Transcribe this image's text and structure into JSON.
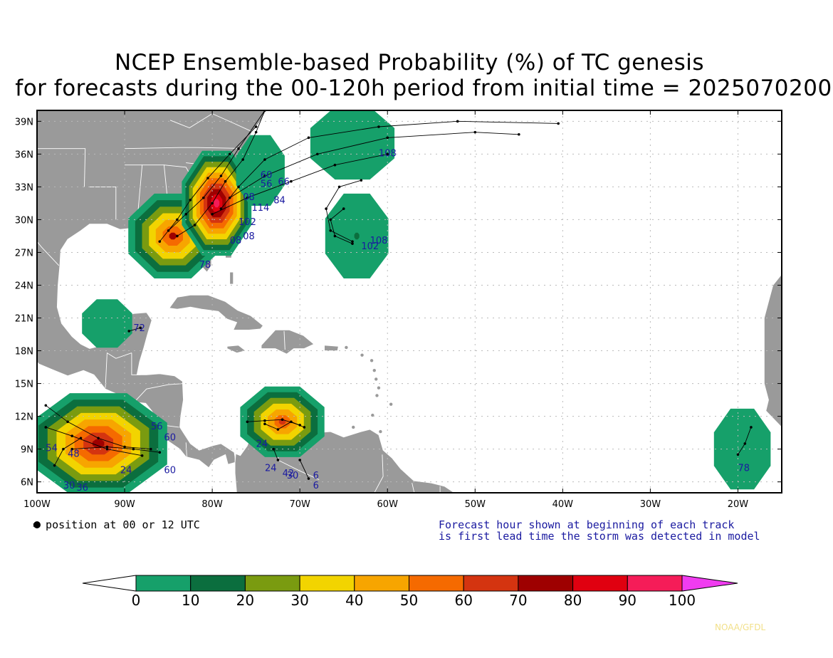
{
  "title": {
    "line1": "NCEP Ensemble-based Probability (%) of TC genesis",
    "line2": "for forecasts during the 00-120h period from initial time = 2025070200"
  },
  "axes": {
    "lat_labels": [
      "39N",
      "36N",
      "33N",
      "30N",
      "27N",
      "24N",
      "21N",
      "18N",
      "15N",
      "12N",
      "9N",
      "6N"
    ],
    "lon_labels": [
      "100W",
      "90W",
      "80W",
      "70W",
      "60W",
      "50W",
      "40W",
      "30W",
      "20W"
    ],
    "lat_range": [
      5,
      40
    ],
    "lon_range": [
      -100,
      -15
    ]
  },
  "legend": {
    "dot_text": "= position at 00 or 12 UTC",
    "note_line1": "Forecast hour shown at beginning of each track",
    "note_line2": "is first lead time the storm was detected in model"
  },
  "colorbar": {
    "labels": [
      "0",
      "10",
      "20",
      "30",
      "40",
      "50",
      "60",
      "70",
      "80",
      "90",
      "100"
    ],
    "colors": [
      "#ffffff",
      "#16a06a",
      "#0b6e3e",
      "#7a9b10",
      "#f2d400",
      "#f7a500",
      "#f56a00",
      "#d43410",
      "#9e0000",
      "#e00010",
      "#f51c58",
      "#f03cf0"
    ]
  },
  "credit": "NOAA/GFDL",
  "map_colors": {
    "land": "#9a9a9a",
    "ocean": "#ffffff",
    "track": "#000000",
    "hour_label": "#1a1aa0"
  },
  "prob_regions": [
    {
      "name": "gulf",
      "lat": 28.5,
      "lon": -84.5,
      "levels": [
        10,
        20,
        30,
        40,
        50,
        60,
        70,
        80
      ]
    },
    {
      "name": "southeast",
      "lat": 31.5,
      "lon": -79.5,
      "levels": [
        10,
        20,
        30,
        40,
        50,
        60,
        70,
        80,
        90,
        100
      ]
    },
    {
      "name": "carolina-offshore",
      "lat": 34.5,
      "lon": -74.5,
      "levels": [
        10
      ]
    },
    {
      "name": "north-atlantic",
      "lat": 37,
      "lon": -64,
      "levels": [
        10
      ]
    },
    {
      "name": "bermuda-south",
      "lat": 28.5,
      "lon": -63.5,
      "levels": [
        10,
        20
      ]
    },
    {
      "name": "yucatan",
      "lat": 20.5,
      "lon": -92,
      "levels": [
        10
      ]
    },
    {
      "name": "east-pacific",
      "lat": 9.5,
      "lon": -93,
      "levels": [
        10,
        20,
        30,
        40,
        50,
        60,
        70,
        80
      ]
    },
    {
      "name": "caribbean-south",
      "lat": 11.5,
      "lon": -72,
      "levels": [
        10,
        20,
        30,
        40,
        50,
        60,
        70
      ]
    },
    {
      "name": "cape-verde",
      "lat": 9,
      "lon": -19.5,
      "levels": [
        10
      ]
    }
  ],
  "forecast_hour_labels": [
    {
      "text": "72",
      "lat": 19.8,
      "lon": -89.0
    },
    {
      "text": "108",
      "lat": 35.8,
      "lon": -61.0
    },
    {
      "text": "66",
      "lat": 33.2,
      "lon": -72.5
    },
    {
      "text": "84",
      "lat": 31.5,
      "lon": -73.0
    },
    {
      "text": "60",
      "lat": 33.8,
      "lon": -74.5
    },
    {
      "text": "56",
      "lat": 33.0,
      "lon": -74.5
    },
    {
      "text": "08",
      "lat": 31.8,
      "lon": -76.5
    },
    {
      "text": "114",
      "lat": 30.8,
      "lon": -75.5
    },
    {
      "text": "102",
      "lat": 29.5,
      "lon": -77.0
    },
    {
      "text": "08",
      "lat": 28.2,
      "lon": -76.5
    },
    {
      "text": "08",
      "lat": 27.8,
      "lon": -78.0
    },
    {
      "text": "78",
      "lat": 25.6,
      "lon": -81.5
    },
    {
      "text": "102",
      "lat": 27.3,
      "lon": -63.0
    },
    {
      "text": "108",
      "lat": 27.8,
      "lon": -62.0
    },
    {
      "text": "56",
      "lat": 10.8,
      "lon": -87.0
    },
    {
      "text": "60",
      "lat": 9.8,
      "lon": -85.5
    },
    {
      "text": "60",
      "lat": 6.8,
      "lon": -85.5
    },
    {
      "text": "24",
      "lat": 6.8,
      "lon": -90.5
    },
    {
      "text": "54",
      "lat": 8.8,
      "lon": -99.0
    },
    {
      "text": "48",
      "lat": 8.3,
      "lon": -96.5
    },
    {
      "text": "36",
      "lat": 5.2,
      "lon": -95.5
    },
    {
      "text": "30",
      "lat": 5.4,
      "lon": -97.0
    },
    {
      "text": "24",
      "lat": 9.2,
      "lon": -75.0
    },
    {
      "text": "24",
      "lat": 7.0,
      "lon": -74.0
    },
    {
      "text": "42",
      "lat": 6.5,
      "lon": -72.0
    },
    {
      "text": "30",
      "lat": 6.3,
      "lon": -71.5
    },
    {
      "text": "6",
      "lat": 6.3,
      "lon": -68.5
    },
    {
      "text": "6",
      "lat": 5.4,
      "lon": -68.5
    },
    {
      "text": "78",
      "lat": 7.0,
      "lon": -20.0
    }
  ]
}
